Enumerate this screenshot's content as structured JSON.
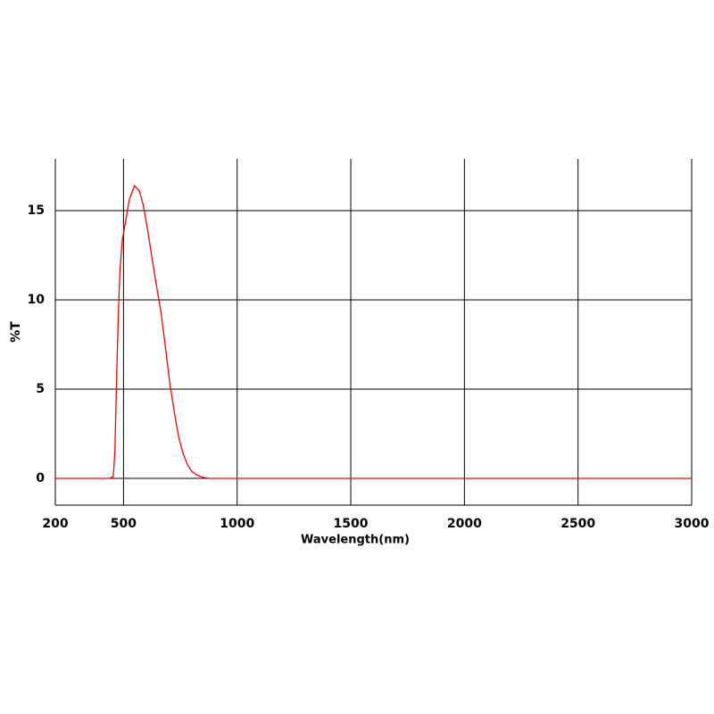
{
  "chart_data": {
    "type": "line",
    "x_label": "Wavelength(nm)",
    "y_label": "%T",
    "x": [
      200,
      440,
      455,
      462,
      470,
      478,
      485,
      495,
      508,
      525,
      548,
      570,
      587,
      605,
      626,
      645,
      665,
      685,
      704,
      725,
      743,
      762,
      782,
      800,
      821,
      850,
      880,
      1000,
      3000
    ],
    "series": [
      {
        "color": "#ff0000",
        "values": [
          0,
          0,
          0.1,
          1.5,
          5.8,
          9.5,
          11.8,
          13.4,
          14.3,
          15.6,
          16.4,
          16.1,
          15.3,
          14.0,
          12.3,
          10.8,
          9.3,
          7.3,
          5.3,
          3.6,
          2.3,
          1.4,
          0.75,
          0.4,
          0.2,
          0.05,
          0,
          0,
          0
        ]
      }
    ],
    "xlim": [
      200,
      3000
    ],
    "xticks": [
      200,
      500,
      1000,
      1500,
      2000,
      2500,
      3000
    ],
    "ylim": [
      -1.5,
      17.9
    ],
    "yticks": [
      0,
      5,
      10,
      15
    ],
    "grid": true
  }
}
